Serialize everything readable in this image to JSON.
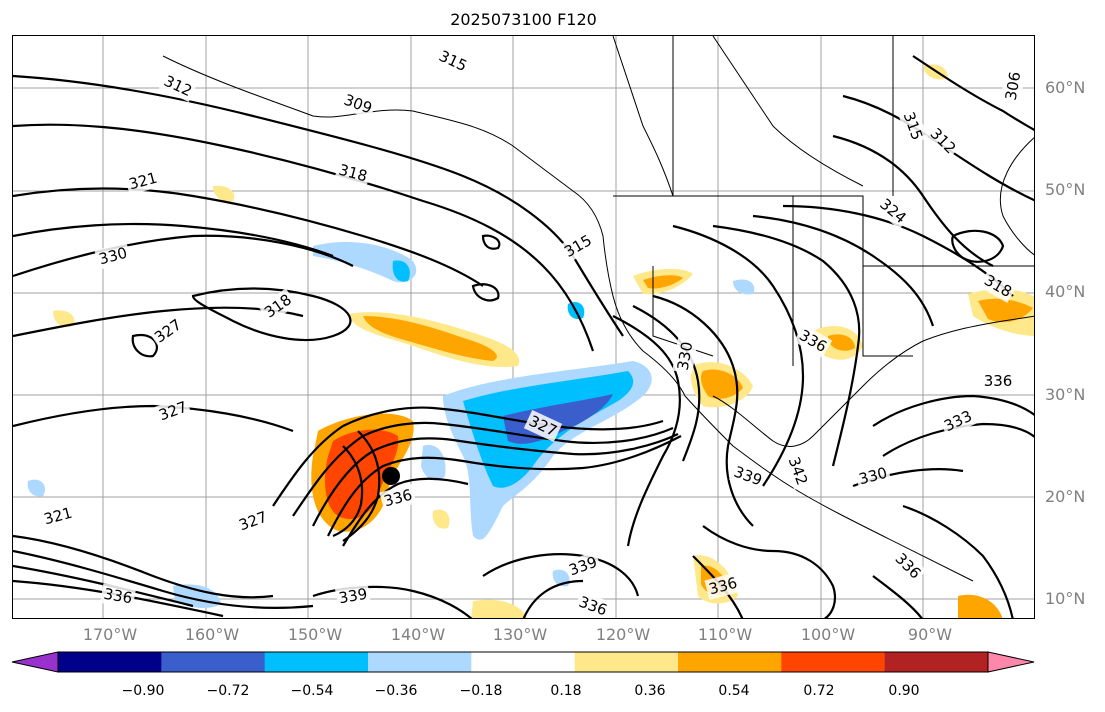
{
  "title": "2025073100 F120",
  "map": {
    "region": "North Pacific / North America",
    "lat_labels": [
      "60°N",
      "50°N",
      "40°N",
      "30°N",
      "20°N",
      "10°N"
    ],
    "lon_labels": [
      "170°W",
      "160°W",
      "150°W",
      "140°W",
      "130°W",
      "120°W",
      "110°W",
      "100°W",
      "90°W"
    ],
    "contour_labels": [
      "315",
      "309",
      "312",
      "318",
      "321",
      "330",
      "318",
      "327",
      "327",
      "321",
      "327",
      "315",
      "330",
      "327",
      "336",
      "336",
      "339",
      "342",
      "339",
      "336",
      "336",
      "339",
      "330",
      "333",
      "336",
      "336",
      "324",
      "318",
      "315",
      "312",
      "306",
      "336"
    ],
    "marker": "black-dot"
  },
  "colorbar": {
    "ticks": [
      "−0.90",
      "−0.72",
      "−0.54",
      "−0.36",
      "−0.18",
      "0.18",
      "0.36",
      "0.54",
      "0.72",
      "0.90"
    ],
    "colors": [
      "#9932cc",
      "#00008b",
      "#3a5fcd",
      "#00bfff",
      "#add8ff",
      "#ffffff",
      "#ffe88a",
      "#ffa500",
      "#ff4500",
      "#b22222",
      "#ff88aa"
    ]
  }
}
